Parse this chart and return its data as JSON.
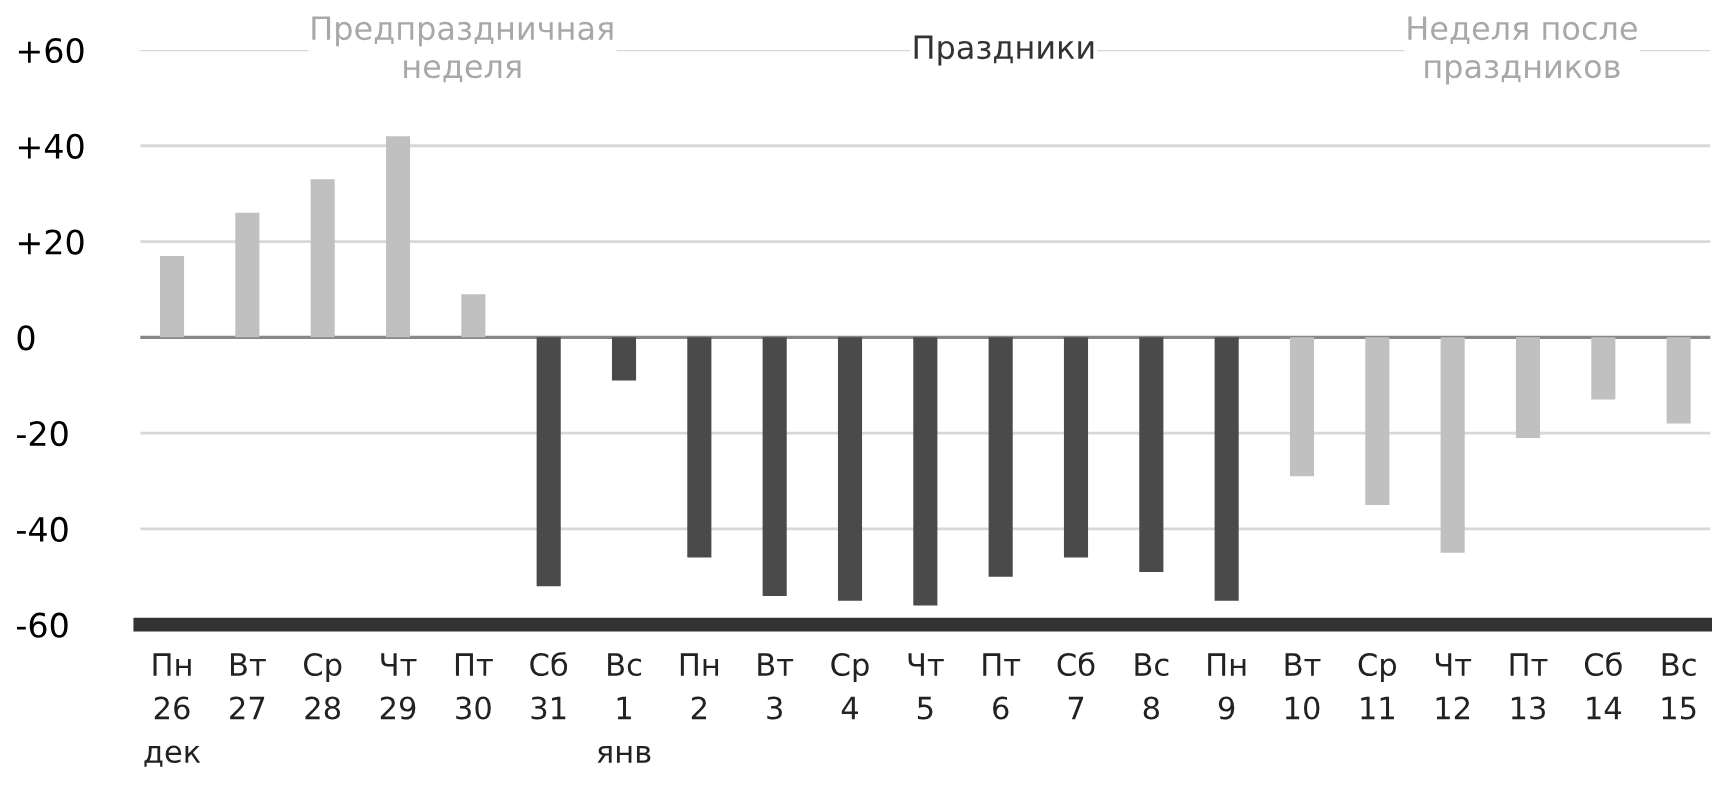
{
  "chart_data": {
    "type": "bar",
    "categories": [
      "Пн\n26\nдек",
      "Вт\n27",
      "Ср\n28",
      "Чт\n29",
      "Пт\n30",
      "Сб\n31",
      "Вс\n1\nянв",
      "Пн\n2",
      "Вт\n3",
      "Ср\n4",
      "Чт\n5",
      "Пт\n6",
      "Сб\n7",
      "Вс\n8",
      "Пн\n9",
      "Вт\n10",
      "Ср\n11",
      "Чт\n12",
      "Пт\n13",
      "Сб\n14",
      "Вс\n15"
    ],
    "values": [
      17,
      26,
      33,
      42,
      9,
      -52,
      -9,
      -46,
      -54,
      -55,
      -56,
      -50,
      -46,
      -49,
      -55,
      -29,
      -35,
      -45,
      -21,
      -13,
      -18
    ],
    "colors": [
      "#c0c0c0",
      "#c0c0c0",
      "#c0c0c0",
      "#c0c0c0",
      "#c0c0c0",
      "#4a4a4a",
      "#4a4a4a",
      "#4a4a4a",
      "#4a4a4a",
      "#4a4a4a",
      "#4a4a4a",
      "#4a4a4a",
      "#4a4a4a",
      "#4a4a4a",
      "#4a4a4a",
      "#c0c0c0",
      "#c0c0c0",
      "#c0c0c0",
      "#c0c0c0",
      "#c0c0c0",
      "#c0c0c0"
    ],
    "ylim": [
      -60,
      60
    ],
    "yticks": [
      {
        "value": 60,
        "label": "+60"
      },
      {
        "value": 40,
        "label": "+40"
      },
      {
        "value": 20,
        "label": "+20"
      },
      0,
      -20,
      -40,
      -60
    ],
    "grid": "y",
    "annotations": [
      "Предпраздничная\nнеделя",
      "Праздники",
      "Неделя после\nпраздников"
    ]
  }
}
